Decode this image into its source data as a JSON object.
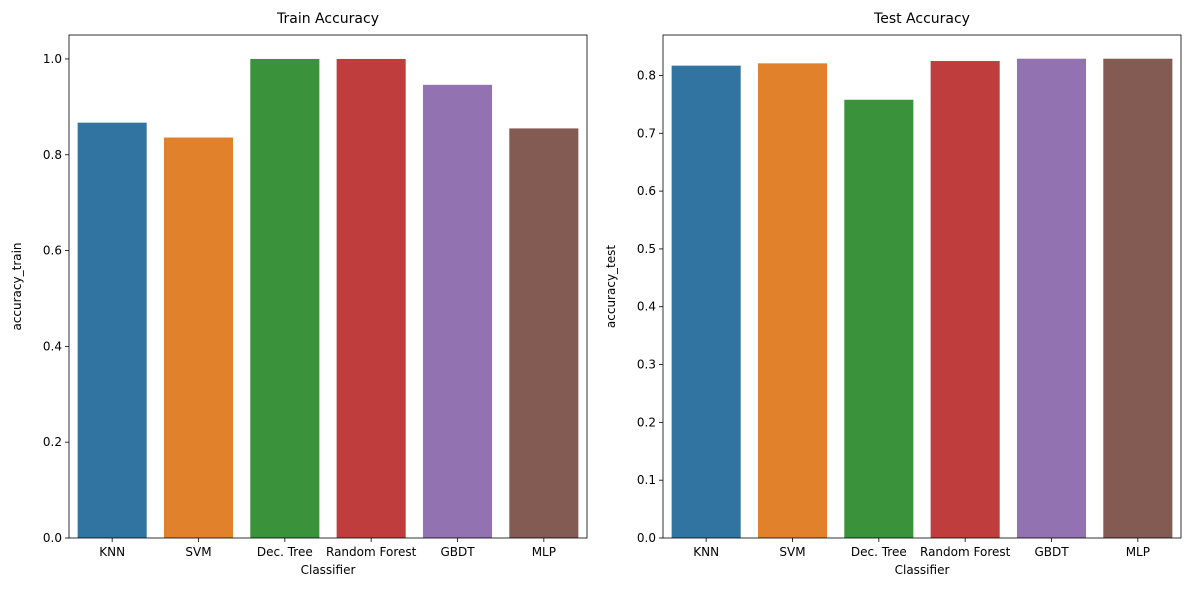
{
  "chart_data": [
    {
      "type": "bar",
      "title": "Train Accuracy",
      "xlabel": "Classifier",
      "ylabel": "accuracy_train",
      "categories": [
        "KNN",
        "SVM",
        "Dec. Tree",
        "Random Forest",
        "GBDT",
        "MLP"
      ],
      "values": [
        0.867,
        0.836,
        1.0,
        1.0,
        0.946,
        0.855
      ],
      "ylim": [
        0,
        1.05
      ],
      "yticks": [
        0.0,
        0.2,
        0.4,
        0.6,
        0.8,
        1.0
      ],
      "ytick_labels": [
        "0.0",
        "0.2",
        "0.4",
        "0.6",
        "0.8",
        "1.0"
      ],
      "grid": false,
      "colors": [
        "#3274a1",
        "#e1812c",
        "#3a923a",
        "#c03d3e",
        "#9372b2",
        "#845b53"
      ]
    },
    {
      "type": "bar",
      "title": "Test Accuracy",
      "xlabel": "Classifier",
      "ylabel": "accuracy_test",
      "categories": [
        "KNN",
        "SVM",
        "Dec. Tree",
        "Random Forest",
        "GBDT",
        "MLP"
      ],
      "values": [
        0.817,
        0.821,
        0.758,
        0.825,
        0.829,
        0.829
      ],
      "ylim": [
        0,
        0.87
      ],
      "yticks": [
        0.0,
        0.1,
        0.2,
        0.3,
        0.4,
        0.5,
        0.6,
        0.7,
        0.8
      ],
      "ytick_labels": [
        "0.0",
        "0.1",
        "0.2",
        "0.3",
        "0.4",
        "0.5",
        "0.6",
        "0.7",
        "0.8"
      ],
      "grid": false,
      "colors": [
        "#3274a1",
        "#e1812c",
        "#3a923a",
        "#c03d3e",
        "#9372b2",
        "#845b53"
      ]
    }
  ]
}
